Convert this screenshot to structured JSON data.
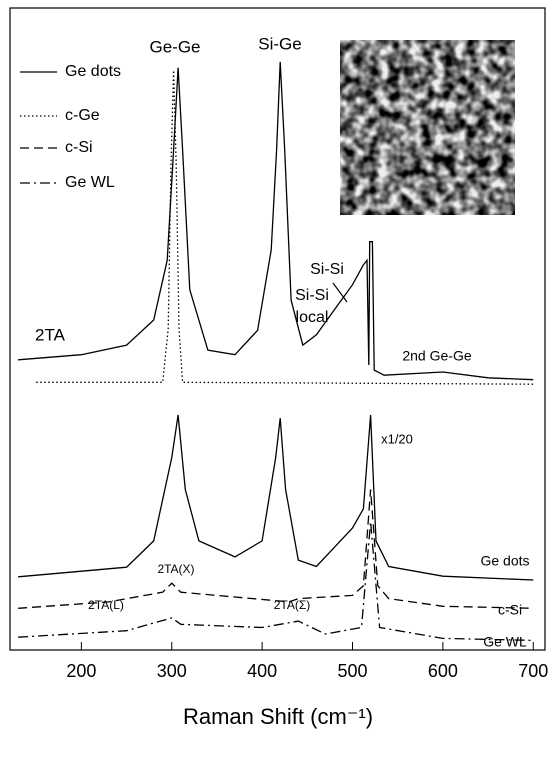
{
  "chart_data": {
    "type": "line",
    "xlabel": "Raman Shift (cm⁻¹)",
    "xlim": [
      121,
      713
    ],
    "xticks": [
      200,
      300,
      400,
      500,
      600,
      700
    ],
    "ylim": [
      0,
      100
    ],
    "series": [
      {
        "name": "Ge dots",
        "color": "#000000",
        "dash": "solid",
        "x": [
          130,
          200,
          250,
          280,
          295,
          302,
          307,
          312,
          320,
          340,
          370,
          395,
          410,
          416,
          420,
          425,
          432,
          445,
          460,
          480,
          500,
          512,
          516,
          518,
          519,
          522,
          524,
          535,
          600,
          650,
          700
        ],
        "values": [
          45.2,
          46.0,
          47.5,
          51.4,
          60.7,
          77.9,
          90.7,
          77.9,
          56.1,
          46.7,
          46.0,
          49.8,
          62.3,
          77.9,
          91.6,
          77.9,
          54.5,
          47.5,
          49.1,
          53.0,
          56.9,
          60.0,
          60.7,
          44.4,
          63.6,
          63.6,
          43.6,
          42.8,
          43.3,
          42.4,
          42.1
        ]
      },
      {
        "name": "c-Ge",
        "color": "#000000",
        "dash": "dotted",
        "x": [
          150,
          290,
          296,
          299,
          302,
          305,
          308,
          312,
          700
        ],
        "values": [
          41.7,
          41.7,
          50,
          75,
          90.3,
          75,
          50,
          41.7,
          41.4
        ]
      },
      {
        "name": "Ge dots",
        "color": "#000000",
        "dash": "solid",
        "x": [
          130,
          250,
          280,
          300,
          307,
          315,
          330,
          370,
          400,
          415,
          420,
          426,
          440,
          460,
          480,
          500,
          512,
          520,
          526,
          540,
          600,
          700
        ],
        "values": [
          11.4,
          12.9,
          17,
          30,
          36.6,
          25,
          17,
          14.5,
          17,
          30,
          36.1,
          25,
          14,
          13,
          16,
          19,
          22,
          36.6,
          17,
          13,
          11.5,
          10.9
        ]
      },
      {
        "name": "c-Si",
        "color": "#000000",
        "dash": "dashed",
        "x": [
          130,
          230,
          290,
          300,
          310,
          430,
          440,
          500,
          512,
          520,
          528,
          540,
          600,
          700
        ],
        "values": [
          6.5,
          7.5,
          9.0,
          10.4,
          9.0,
          7.5,
          8,
          8.5,
          10,
          25,
          10,
          8,
          6.8,
          6.5
        ]
      },
      {
        "name": "Ge WL",
        "color": "#000000",
        "dash": "dashdot",
        "x": [
          130,
          250,
          300,
          310,
          400,
          440,
          470,
          510,
          520,
          530,
          600,
          700
        ],
        "values": [
          2.0,
          3,
          5,
          4,
          3.5,
          4.5,
          2.5,
          3.5,
          20,
          3.5,
          1.8,
          1.5
        ]
      }
    ],
    "annotations": [
      "Ge-Ge",
      "Si-Ge",
      "Si-Si",
      "Si-Si",
      "local",
      "2TA",
      "2nd Ge-Ge",
      "x1/20",
      "2TA(L)",
      "2TA(X)",
      "2TA(Σ)"
    ]
  }
}
